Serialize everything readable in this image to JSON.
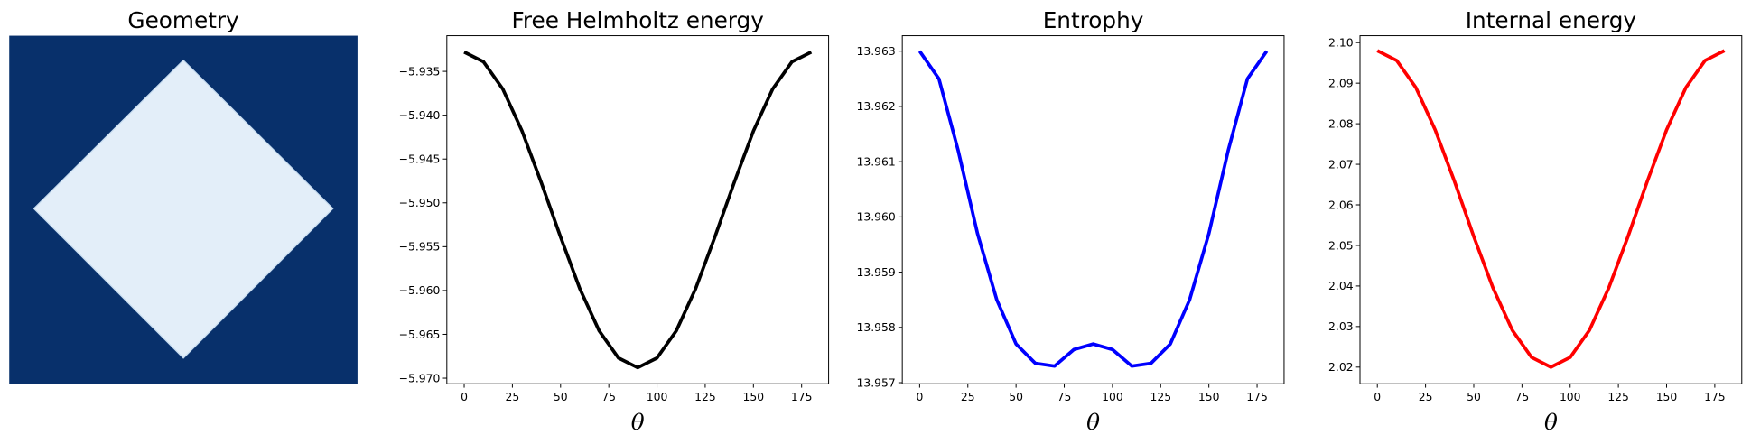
{
  "chart_data": [
    {
      "type": "image",
      "title": "Geometry"
    },
    {
      "type": "line",
      "title": "Free Helmholtz energy",
      "xlabel": "θ",
      "color": "#000000",
      "x": [
        0,
        10,
        20,
        30,
        40,
        50,
        60,
        70,
        80,
        90,
        100,
        110,
        120,
        130,
        140,
        150,
        160,
        170,
        180
      ],
      "values": [
        -5.9328,
        -5.9339,
        -5.937,
        -5.9418,
        -5.9477,
        -5.9539,
        -5.9598,
        -5.9646,
        -5.9677,
        -5.9688,
        -5.9677,
        -5.9646,
        -5.9598,
        -5.9539,
        -5.9477,
        -5.9418,
        -5.937,
        -5.9339,
        -5.9328
      ],
      "xlim": [
        -9,
        189
      ],
      "xticks": [
        0,
        25,
        50,
        75,
        100,
        125,
        150,
        175
      ],
      "ylim": [
        -5.97064,
        -5.93093
      ],
      "yticks": [
        {
          "value": -5.935,
          "label": "−5.935"
        },
        {
          "value": -5.94,
          "label": "−5.940"
        },
        {
          "value": -5.945,
          "label": "−5.945"
        },
        {
          "value": -5.95,
          "label": "−5.950"
        },
        {
          "value": -5.955,
          "label": "−5.955"
        },
        {
          "value": -5.96,
          "label": "−5.960"
        },
        {
          "value": -5.965,
          "label": "−5.965"
        },
        {
          "value": -5.97,
          "label": "−5.970"
        }
      ]
    },
    {
      "type": "line",
      "title": "Entrophy",
      "xlabel": "θ",
      "color": "#0000ff",
      "x": [
        0,
        10,
        20,
        30,
        40,
        50,
        60,
        70,
        80,
        90,
        100,
        110,
        120,
        130,
        140,
        150,
        160,
        170,
        180
      ],
      "values": [
        13.963,
        13.9625,
        13.9612,
        13.9597,
        13.9585,
        13.9577,
        13.95735,
        13.9573,
        13.9576,
        13.9577,
        13.9576,
        13.9573,
        13.95735,
        13.9577,
        13.9585,
        13.9597,
        13.9612,
        13.9625,
        13.963
      ],
      "xlim": [
        -9,
        189
      ],
      "xticks": [
        0,
        25,
        50,
        75,
        100,
        125,
        150,
        175
      ],
      "ylim": [
        13.95698,
        13.96328
      ],
      "yticks": [
        13.957,
        13.958,
        13.959,
        {
          "value": 13.96,
          "label": "13.960"
        },
        13.961,
        13.962,
        13.963
      ]
    },
    {
      "type": "line",
      "title": "Internal energy",
      "xlabel": "θ",
      "color": "#ff0000",
      "x": [
        0,
        10,
        20,
        30,
        40,
        50,
        60,
        70,
        80,
        90,
        100,
        110,
        120,
        130,
        140,
        150,
        160,
        170,
        180
      ],
      "values": [
        2.098,
        2.0956,
        2.0889,
        2.0785,
        2.0658,
        2.0522,
        2.0395,
        2.0291,
        2.0224,
        2.02,
        2.0224,
        2.0291,
        2.0395,
        2.0522,
        2.0658,
        2.0785,
        2.0889,
        2.0956,
        2.098
      ],
      "xlim": [
        -9,
        189
      ],
      "xticks": [
        0,
        25,
        50,
        75,
        100,
        125,
        150,
        175
      ],
      "ylim": [
        2.0159,
        2.1017
      ],
      "yticks": [
        2.02,
        2.03,
        2.04,
        2.05,
        2.06,
        2.07,
        2.08,
        2.09,
        {
          "value": 2.1,
          "label": "2.10"
        }
      ]
    }
  ]
}
